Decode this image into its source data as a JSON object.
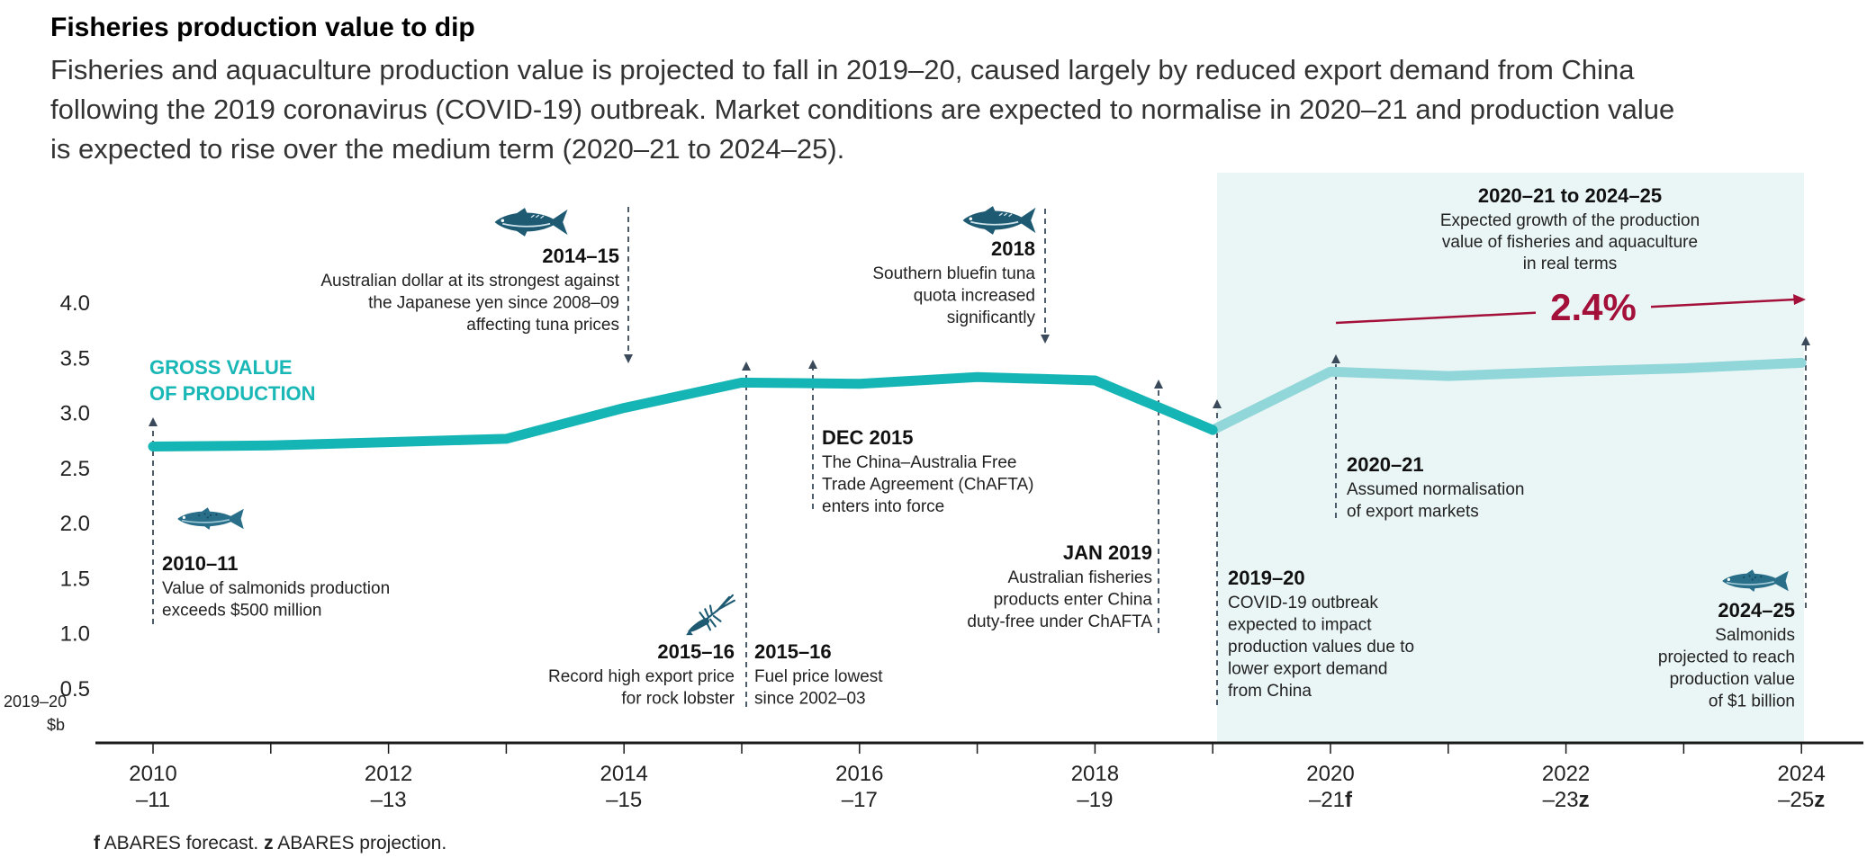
{
  "title": "Fisheries production value to dip",
  "subtitle_lines": [
    "Fisheries and aquaculture production value is projected to fall in 2019–20, caused largely by reduced export demand from China",
    "following the 2019 coronavirus (COVID-19) outbreak. Market conditions are expected to normalise in 2020–21 and production value",
    "is expected to rise over the medium term (2020–21 to 2024–25)."
  ],
  "colors": {
    "actual": "#16b5b5",
    "forecast": "#91d6d8",
    "shade": "#eaf5f6",
    "growth": "#a3103a",
    "axis": "#1a1a1a",
    "dashed": "#3a4a5a",
    "fish": "#1e5b73"
  },
  "chart_data": {
    "type": "line",
    "title": "Fisheries production value to dip",
    "ylabel": "2019–20 $b",
    "ylim": [
      0,
      4.0
    ],
    "yticks": [
      0.5,
      1.0,
      1.5,
      2.0,
      2.5,
      3.0,
      3.5,
      4.0
    ],
    "ytick_labels": [
      "0.5",
      "1.0",
      "1.5",
      "2.0",
      "2.5",
      "3.0",
      "3.5",
      "4.0"
    ],
    "x": [
      "2010–11",
      "2011–12",
      "2012–13",
      "2013–14",
      "2014–15",
      "2015–16",
      "2016–17",
      "2017–18",
      "2018–19",
      "2019–20",
      "2020–21",
      "2021–22",
      "2022–23",
      "2023–24",
      "2024–25"
    ],
    "x_tick_labels": [
      {
        "top": "2010",
        "bottom": "–11"
      },
      {
        "top": "2012",
        "bottom": "–13"
      },
      {
        "top": "2014",
        "bottom": "–15"
      },
      {
        "top": "2016",
        "bottom": "–17"
      },
      {
        "top": "2018",
        "bottom": "–19"
      },
      {
        "top": "2020",
        "bottom": "–21",
        "suffix": "f"
      },
      {
        "top": "2022",
        "bottom": "–23",
        "suffix": "z"
      },
      {
        "top": "2024",
        "bottom": "–25",
        "suffix": "z"
      }
    ],
    "series": [
      {
        "name": "GROSS VALUE OF PRODUCTION",
        "values": [
          2.69,
          2.7,
          2.73,
          2.76,
          3.04,
          3.27,
          3.26,
          3.32,
          3.29,
          2.84,
          3.37,
          3.33,
          3.37,
          3.4,
          3.45
        ]
      }
    ],
    "actual_through": "2019–20",
    "series_label_lines": [
      "GROSS VALUE",
      "OF PRODUCTION"
    ],
    "forecast_region": {
      "from": "2019–20",
      "to": "2024–25"
    },
    "growth": {
      "value": "2.4%",
      "heading": "2020–21 to 2024–25",
      "text_lines": [
        "Expected growth of the production",
        "value of fisheries and aquaculture",
        "in real terms"
      ]
    },
    "annotations": [
      {
        "id": "a2010",
        "heading": "2010–11",
        "lines": [
          "Value of salmonids production",
          "exceeds $500 million"
        ]
      },
      {
        "id": "a2014",
        "heading": "2014–15",
        "lines": [
          "Australian dollar at its strongest against",
          "the Japanese yen since 2008–09",
          "affecting tuna prices"
        ]
      },
      {
        "id": "a2015lob",
        "heading": "2015–16",
        "lines": [
          "Record high export price",
          "for rock lobster"
        ]
      },
      {
        "id": "a2015fuel",
        "heading": "2015–16",
        "lines": [
          "Fuel price lowest",
          "since 2002–03"
        ]
      },
      {
        "id": "adec2015",
        "heading": "DEC 2015",
        "lines": [
          "The China–Australia Free",
          "Trade Agreement (ChAFTA)",
          "enters into force"
        ]
      },
      {
        "id": "a2018",
        "heading": "2018",
        "lines": [
          "Southern bluefin tuna",
          "quota increased",
          "significantly"
        ]
      },
      {
        "id": "ajan2019",
        "heading": "JAN 2019",
        "lines": [
          "Australian fisheries",
          "products enter China",
          "duty-free under ChAFTA"
        ]
      },
      {
        "id": "a2019",
        "heading": "2019–20",
        "lines": [
          "COVID-19 outbreak",
          "expected to impact",
          "production values due to",
          "lower export demand",
          "from China"
        ]
      },
      {
        "id": "a2020",
        "heading": "2020–21",
        "lines": [
          "Assumed normalisation",
          "of export markets"
        ]
      },
      {
        "id": "a2024",
        "heading": "2024–25",
        "lines": [
          "Salmonids",
          "projected to reach",
          "production value",
          "of $1 billion"
        ]
      }
    ],
    "footnote": [
      {
        "letter": "f",
        "text": " ABARES forecast. "
      },
      {
        "letter": "z",
        "text": " ABARES projection."
      }
    ]
  }
}
